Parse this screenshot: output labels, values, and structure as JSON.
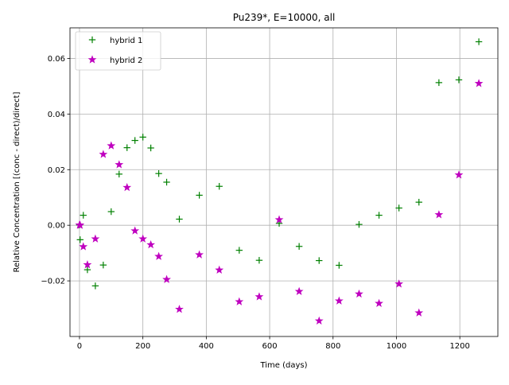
{
  "chart_data": {
    "type": "scatter",
    "title": "Pu239*, E=10000, all",
    "xlabel": "Time (days)",
    "ylabel": "Relative Concentration [(conc - direct)/direct]",
    "xlim": [
      -30,
      1320
    ],
    "ylim": [
      -0.04,
      0.071
    ],
    "xticks": [
      0,
      200,
      400,
      600,
      800,
      1000,
      1200
    ],
    "xtick_labels": [
      "0",
      "200",
      "400",
      "600",
      "800",
      "1000",
      "1200"
    ],
    "yticks": [
      -0.02,
      0.0,
      0.02,
      0.04,
      0.06
    ],
    "ytick_labels": [
      "−0.02",
      "0.00",
      "0.02",
      "0.04",
      "0.06"
    ],
    "grid": true,
    "legend_position": "top-left",
    "series": [
      {
        "name": "hybrid 1",
        "marker": "plus",
        "color": "#008000",
        "x": [
          0,
          2,
          12,
          25,
          50,
          75,
          100,
          125,
          150,
          175,
          200,
          225,
          250,
          275,
          315,
          378,
          441,
          504,
          567,
          630,
          693,
          756,
          819,
          882,
          945,
          1008,
          1071,
          1134,
          1197,
          1260
        ],
        "y": [
          0.0001,
          -0.0052,
          0.0036,
          -0.016,
          -0.0218,
          -0.0143,
          0.0049,
          0.0184,
          0.0279,
          0.0305,
          0.0317,
          0.0278,
          0.0186,
          0.0155,
          0.0022,
          0.0108,
          0.014,
          -0.009,
          -0.0126,
          0.0007,
          -0.0076,
          -0.0127,
          -0.0144,
          0.0003,
          0.0036,
          0.0062,
          0.0083,
          0.0513,
          0.0523,
          0.066
        ]
      },
      {
        "name": "hybrid 2",
        "marker": "star",
        "color": "#bf00bf",
        "x": [
          0,
          2,
          12,
          25,
          50,
          75,
          100,
          125,
          150,
          175,
          200,
          225,
          250,
          275,
          315,
          378,
          441,
          504,
          567,
          630,
          693,
          756,
          819,
          882,
          945,
          1008,
          1071,
          1134,
          1197,
          1260
        ],
        "y": [
          0.0001,
          0.0,
          -0.0077,
          -0.0142,
          -0.0049,
          0.0255,
          0.0286,
          0.0218,
          0.0136,
          -0.002,
          -0.0049,
          -0.007,
          -0.0112,
          -0.0195,
          -0.0302,
          -0.0106,
          -0.0161,
          -0.0275,
          -0.0257,
          0.002,
          -0.0238,
          -0.0344,
          -0.0272,
          -0.0247,
          -0.0281,
          -0.0211,
          -0.0315,
          0.0038,
          0.0181,
          0.051
        ]
      }
    ]
  }
}
